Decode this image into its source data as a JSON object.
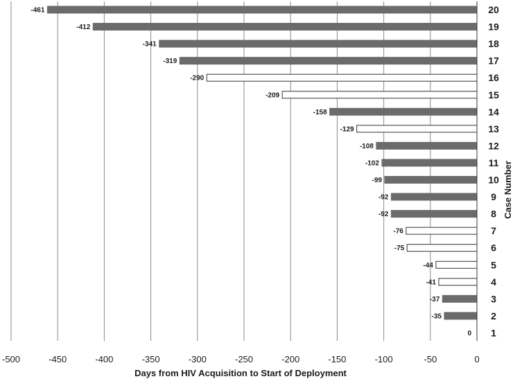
{
  "chart_data": {
    "type": "bar",
    "orientation": "horizontal",
    "xlabel": "Days from HIV Acquisition to Start of Deployment",
    "ylabel": "Case Number",
    "xlim": [
      -500,
      0
    ],
    "xticks": [
      -500,
      -450,
      -400,
      -350,
      -300,
      -250,
      -200,
      -150,
      -100,
      -50,
      0
    ],
    "grid": "vertical",
    "colors": {
      "filled": "#6b6b6b",
      "hollow": "#ffffff",
      "edge": "#333333"
    },
    "bars": [
      {
        "case": "20",
        "value": -461,
        "label": "-461",
        "filled": true
      },
      {
        "case": "19",
        "value": -412,
        "label": "-412",
        "filled": true
      },
      {
        "case": "18",
        "value": -341,
        "label": "-341",
        "filled": true
      },
      {
        "case": "17",
        "value": -319,
        "label": "-319",
        "filled": true
      },
      {
        "case": "16",
        "value": -290,
        "label": "-290",
        "filled": false
      },
      {
        "case": "15",
        "value": -209,
        "label": "-209",
        "filled": false
      },
      {
        "case": "14",
        "value": -158,
        "label": "-158",
        "filled": true
      },
      {
        "case": "13",
        "value": -129,
        "label": "-129",
        "filled": false
      },
      {
        "case": "12",
        "value": -108,
        "label": "-108",
        "filled": true
      },
      {
        "case": "11",
        "value": -102,
        "label": "-102",
        "filled": true
      },
      {
        "case": "10",
        "value": -99,
        "label": "-99",
        "filled": true
      },
      {
        "case": "9",
        "value": -92,
        "label": "-92",
        "filled": true
      },
      {
        "case": "8",
        "value": -92,
        "label": "-92",
        "filled": true
      },
      {
        "case": "7",
        "value": -76,
        "label": "-76",
        "filled": false
      },
      {
        "case": "6",
        "value": -75,
        "label": "-75",
        "filled": false
      },
      {
        "case": "5",
        "value": -44,
        "label": "-44",
        "filled": false
      },
      {
        "case": "4",
        "value": -41,
        "label": "-41",
        "filled": false
      },
      {
        "case": "3",
        "value": -37,
        "label": "-37",
        "filled": true
      },
      {
        "case": "2",
        "value": -35,
        "label": "-35",
        "filled": true
      },
      {
        "case": "1",
        "value": 0,
        "label": "0",
        "filled": true
      }
    ]
  }
}
